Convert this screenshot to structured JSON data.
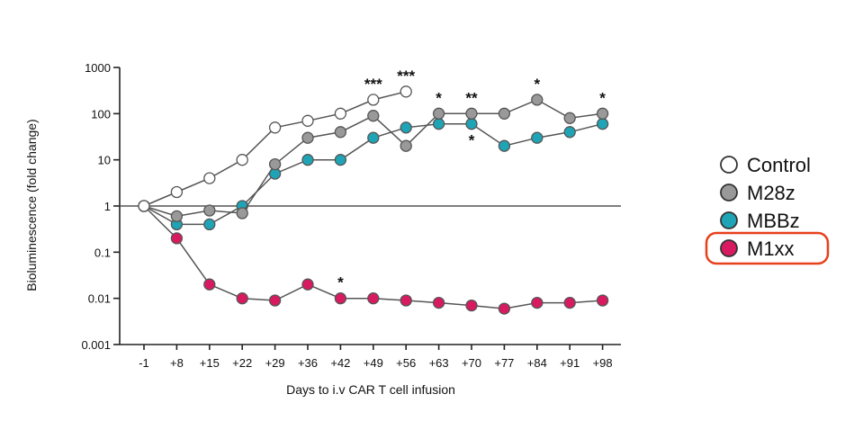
{
  "chart_data": {
    "type": "line",
    "xlabel": "Days to i.v CAR T cell infusion",
    "ylabel": "Bioluminescence (fold change)",
    "yscale": "log",
    "ylim": [
      0.001,
      1000
    ],
    "y_ticks": [
      {
        "value": 0.001,
        "label": "0.001"
      },
      {
        "value": 0.01,
        "label": "0.01"
      },
      {
        "value": 0.1,
        "label": "0.1"
      },
      {
        "value": 1,
        "label": "1"
      },
      {
        "value": 10,
        "label": "10"
      },
      {
        "value": 100,
        "label": "100"
      },
      {
        "value": 1000,
        "label": "1000"
      }
    ],
    "categories": [
      "-1",
      "+8",
      "+15",
      "+22",
      "+29",
      "+36",
      "+42",
      "+49",
      "+56",
      "+63",
      "+70",
      "+77",
      "+84",
      "+91",
      "+98"
    ],
    "reference_line": 1,
    "legend_position": "right",
    "highlighted_legend_entry": "M1xx",
    "highlight_color": "#e8401c",
    "series": [
      {
        "name": "Control",
        "fill": "#ffffff",
        "stroke": "#555555",
        "values": [
          1,
          2,
          4,
          10,
          50,
          70,
          100,
          200,
          300,
          null,
          null,
          null,
          null,
          null,
          null
        ]
      },
      {
        "name": "M28z",
        "fill": "#999999",
        "stroke": "#555555",
        "values": [
          1,
          0.6,
          0.8,
          0.7,
          8,
          30,
          40,
          90,
          20,
          100,
          100,
          100,
          200,
          80,
          100
        ]
      },
      {
        "name": "MBBz",
        "fill": "#1fa4b5",
        "stroke": "#555555",
        "values": [
          1,
          0.4,
          0.4,
          1,
          5,
          10,
          10,
          30,
          50,
          60,
          60,
          20,
          30,
          40,
          60
        ]
      },
      {
        "name": "M1xx",
        "fill": "#d81b60",
        "stroke": "#555555",
        "values": [
          1,
          0.2,
          0.02,
          0.01,
          0.009,
          0.02,
          0.01,
          0.01,
          0.009,
          0.008,
          0.007,
          0.006,
          0.008,
          0.008,
          0.009
        ]
      }
    ],
    "annotations": [
      {
        "category": "+42",
        "text": "*",
        "position": "above",
        "series": "M1xx"
      },
      {
        "category": "+49",
        "text": "***",
        "position": "above",
        "series": "Control"
      },
      {
        "category": "+56",
        "text": "***",
        "position": "above",
        "series": "Control"
      },
      {
        "category": "+63",
        "text": "*",
        "position": "above",
        "series": "M28z"
      },
      {
        "category": "+70",
        "text": "**",
        "position": "above",
        "series": "M28z"
      },
      {
        "category": "+70",
        "text": "*",
        "position": "below",
        "series": "MBBz"
      },
      {
        "category": "+84",
        "text": "*",
        "position": "above",
        "series": "M28z"
      },
      {
        "category": "+98",
        "text": "*",
        "position": "above",
        "series": "M28z"
      }
    ]
  }
}
